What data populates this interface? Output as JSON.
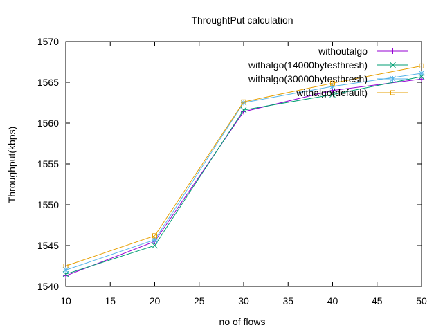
{
  "chart_data": {
    "type": "line",
    "title": "ThroughtPut calculation",
    "xlabel": "no of flows",
    "ylabel": "Throughput(kbps)",
    "xlim": [
      10,
      50
    ],
    "ylim": [
      1540,
      1570
    ],
    "xticks": [
      10,
      15,
      20,
      25,
      30,
      35,
      40,
      45,
      50
    ],
    "yticks": [
      1540,
      1545,
      1550,
      1555,
      1560,
      1565,
      1570
    ],
    "x": [
      10,
      20,
      30,
      40,
      50
    ],
    "grid": false,
    "legend_position": "top-right",
    "series": [
      {
        "name": "withoutalgo",
        "color": "#9400d3",
        "marker": "plus",
        "values": [
          1541.3,
          1545.5,
          1561.4,
          1564.0,
          1565.4
        ]
      },
      {
        "name": "withalgo(14000bytesthresh)",
        "color": "#009e73",
        "marker": "x",
        "values": [
          1541.5,
          1545.0,
          1561.6,
          1563.5,
          1565.7
        ]
      },
      {
        "name": "withalgo(30000bytesthresh)",
        "color": "#56b4e9",
        "marker": "star",
        "values": [
          1542.0,
          1545.7,
          1562.5,
          1564.5,
          1566.1
        ]
      },
      {
        "name": "withalgo(default)",
        "color": "#e69f00",
        "marker": "square",
        "values": [
          1542.5,
          1546.2,
          1562.6,
          1564.9,
          1567.0
        ]
      }
    ]
  }
}
